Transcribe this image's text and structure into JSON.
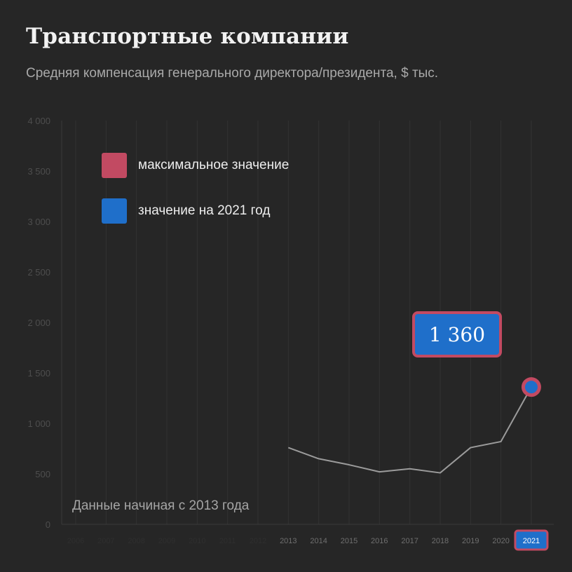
{
  "title": "Транспортные компании",
  "subtitle": "Средняя компенсация генерального директора/президента, $ тыс.",
  "legend": [
    {
      "label": "максимальное значение",
      "color": "#c24a62"
    },
    {
      "label": "значение на 2021 год",
      "color": "#1f6fca"
    }
  ],
  "note": "Данные начиная с 2013 года",
  "callout_value": "1 360",
  "colors": {
    "background": "#262626",
    "line": "#9b9b9b",
    "grid": "#333333",
    "axis_text": "#4d4d4d",
    "max": "#c24a62",
    "current": "#1f6fca"
  },
  "chart_data": {
    "type": "line",
    "ylim": [
      0,
      4000
    ],
    "yticks": [
      0,
      500,
      1000,
      1500,
      2000,
      2500,
      3000,
      3500,
      4000
    ],
    "ytick_labels": [
      "0",
      "500",
      "1 000",
      "1 500",
      "2 000",
      "2 500",
      "3 000",
      "3 500",
      "4 000"
    ],
    "x_axis_years": [
      "2006",
      "2007",
      "2008",
      "2009",
      "2010",
      "2011",
      "2012",
      "2013",
      "2014",
      "2015",
      "2016",
      "2017",
      "2018",
      "2019",
      "2020",
      "2021"
    ],
    "x": [
      "2013",
      "2014",
      "2015",
      "2016",
      "2017",
      "2018",
      "2019",
      "2020",
      "2021"
    ],
    "values": [
      760,
      650,
      590,
      520,
      550,
      510,
      760,
      820,
      1360
    ],
    "highlight_max": "2021",
    "highlight_current": "2021",
    "grid": true
  }
}
